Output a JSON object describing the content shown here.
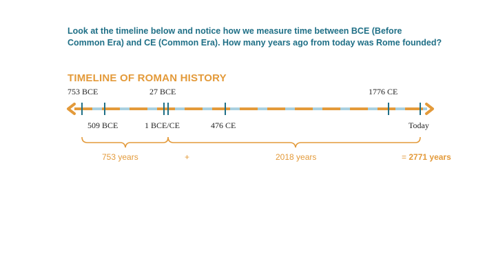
{
  "question": {
    "line1": "Look at the timeline below and notice how we measure time between BCE (Before",
    "line2": "Common Era) and CE (Common Era). How many years ago from today was Rome founded?"
  },
  "timeline": {
    "title": "TIMELINE OF ROMAN HISTORY",
    "labels_above": [
      "753 BCE",
      "27 BCE",
      "1776 CE"
    ],
    "labels_below": [
      "509 BCE",
      "1 BCE/CE",
      "476 CE",
      "Today"
    ]
  },
  "calculation": {
    "part1": "753 years",
    "plus": "+",
    "part2": "2018 years",
    "equals": "=",
    "total": "2771 years"
  },
  "colors": {
    "question_text": "#1f6f86",
    "accent_orange": "#e39a3a",
    "line_blue": "#a9d0e0",
    "tick_teal": "#1f6f86"
  }
}
